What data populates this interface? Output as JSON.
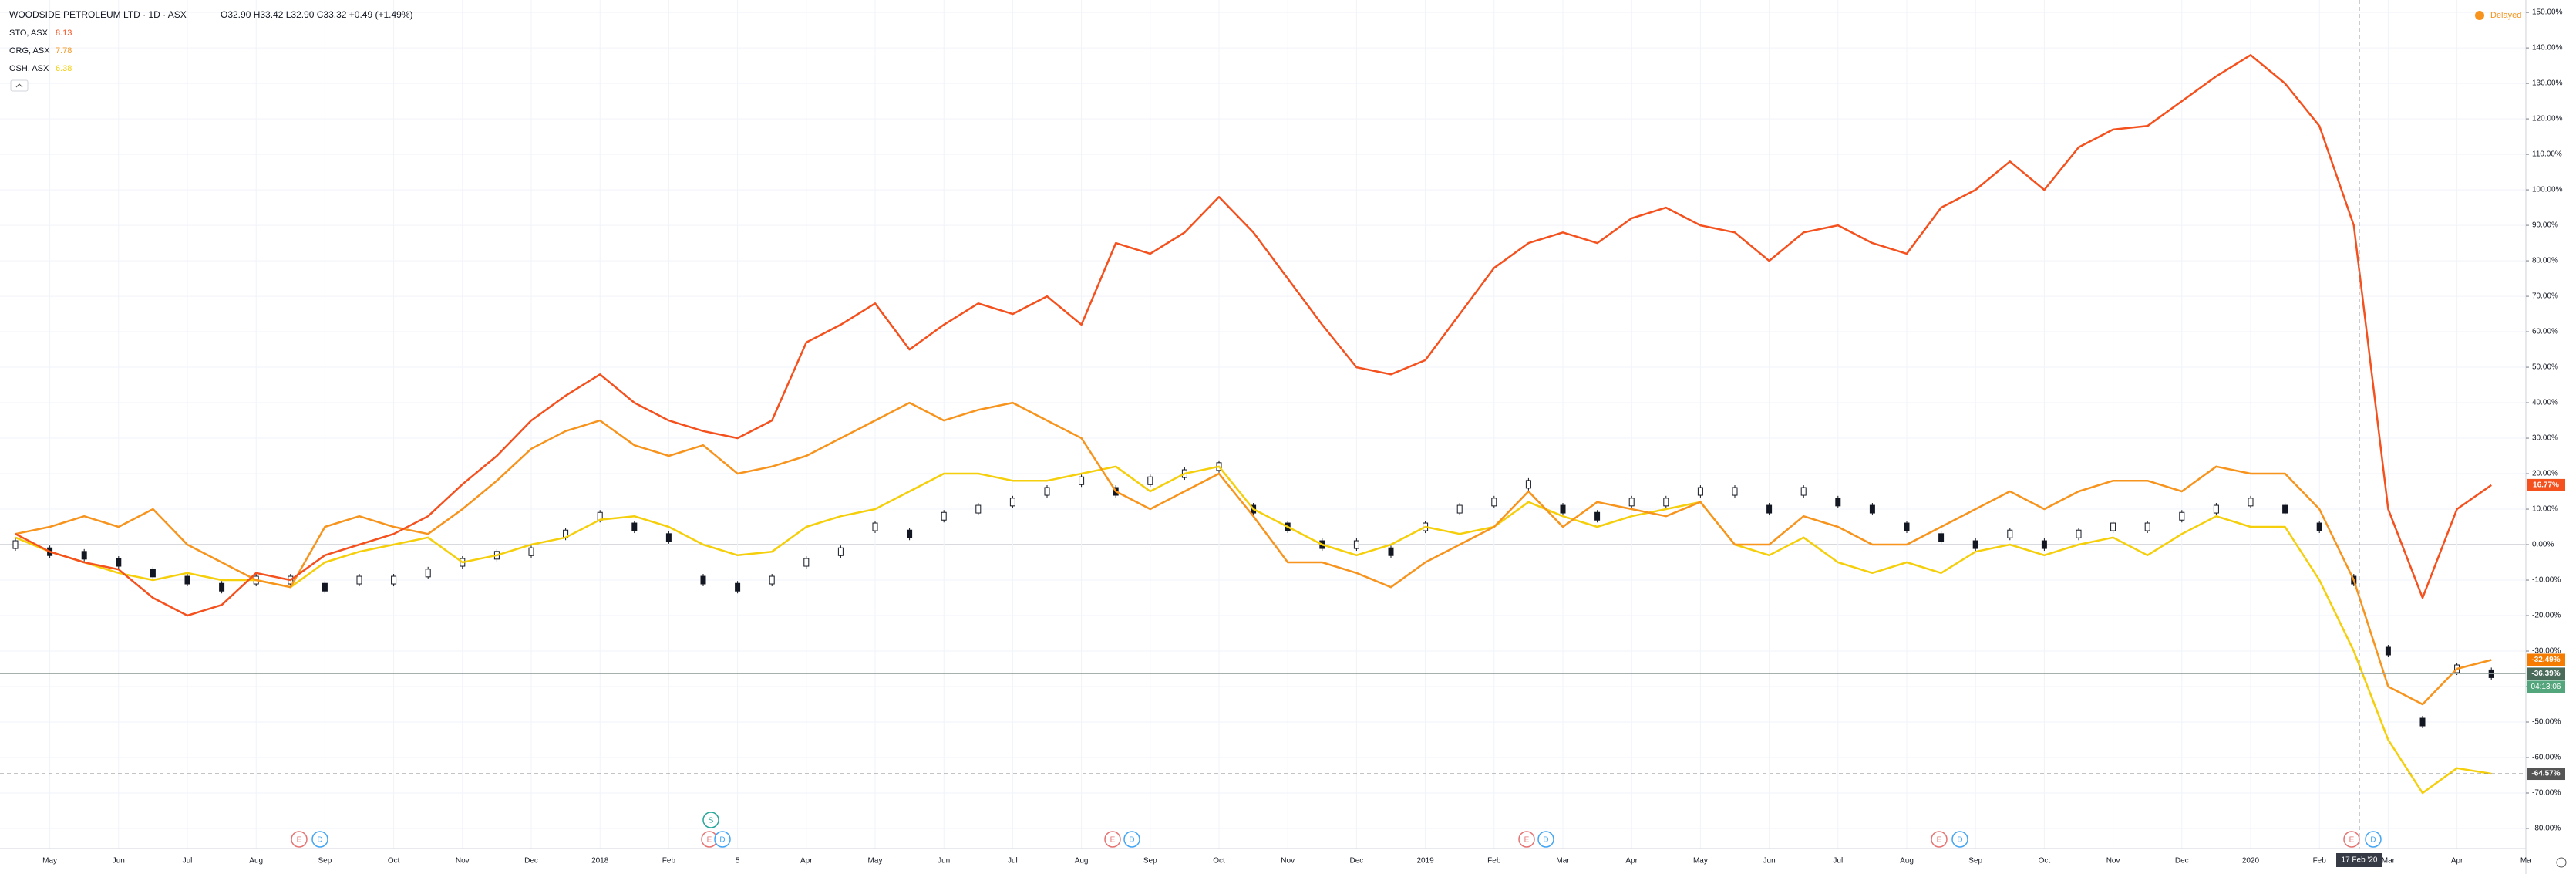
{
  "chart_data": {
    "type": "line",
    "ohlc": "O32.90 H33.42 L32.90 C33.32 +0.49 (+1.49%)",
    "delayed": "Delayed",
    "crosshair_date": "17 Feb '20",
    "countdown": "04:13:06",
    "events": [
      "E",
      "D",
      "S",
      "E",
      "D",
      "E",
      "D",
      "E",
      "D",
      "E",
      "D",
      "E",
      "D"
    ],
    "categories": [
      null,
      "May",
      null,
      "Jun",
      null,
      "Jul",
      null,
      "Aug",
      null,
      "Sep",
      null,
      "Oct",
      null,
      "Nov",
      null,
      "Dec",
      null,
      "2018",
      null,
      "Feb",
      null,
      "5",
      null,
      "Apr",
      null,
      "May",
      null,
      "Jun",
      null,
      "Jul",
      null,
      "Aug",
      null,
      "Sep",
      null,
      "Oct",
      null,
      "Nov",
      null,
      "Dec",
      null,
      "2019",
      null,
      "Feb",
      null,
      "Mar",
      null,
      "Apr",
      null,
      "May",
      null,
      "Jun",
      null,
      "Jul",
      null,
      "Aug",
      null,
      "Sep",
      null,
      "Oct",
      null,
      "Nov",
      null,
      "Dec",
      null,
      "2020",
      null,
      "Feb",
      null,
      "Mar",
      null,
      "Apr",
      null,
      "Ma"
    ],
    "series": [
      {
        "name": "WOODSIDE PETROLEUM LTD · 1D · ASX",
        "style": "candle",
        "color": "#131722",
        "tag_color": "#4a6a5a",
        "last_label": "-36.39%",
        "values": [
          0,
          -2,
          -3,
          -5,
          -8,
          -10,
          -12,
          -10,
          -10,
          -12,
          -10,
          -10,
          -8,
          -5,
          -3,
          -2,
          3,
          8,
          5,
          2,
          -10,
          -12,
          -10,
          -5,
          -2,
          5,
          3,
          8,
          10,
          12,
          15,
          18,
          15,
          18,
          20,
          22,
          10,
          5,
          0,
          0,
          -2,
          5,
          10,
          12,
          17,
          10,
          8,
          12,
          12,
          15,
          15,
          10,
          15,
          12,
          10,
          5,
          2,
          0,
          3,
          0,
          3,
          5,
          5,
          8,
          10,
          12,
          10,
          5,
          -10,
          -30,
          -50,
          -35,
          -36.39,
          null
        ]
      },
      {
        "name": "STO, ASX",
        "price": "8.13",
        "color": "#f4511e",
        "tag_color": "#f4511e",
        "last_label": "16.77%",
        "values": [
          3,
          -2,
          -5,
          -7,
          -15,
          -20,
          -17,
          -8,
          -10,
          -3,
          0,
          3,
          8,
          17,
          25,
          35,
          42,
          48,
          40,
          35,
          32,
          30,
          35,
          57,
          62,
          68,
          55,
          62,
          68,
          65,
          70,
          62,
          85,
          82,
          88,
          98,
          88,
          75,
          62,
          50,
          48,
          52,
          65,
          78,
          85,
          88,
          85,
          92,
          95,
          90,
          88,
          80,
          88,
          90,
          85,
          82,
          95,
          100,
          108,
          100,
          112,
          117,
          118,
          125,
          132,
          138,
          130,
          118,
          90,
          10,
          -15,
          10,
          16.77,
          null
        ]
      },
      {
        "name": "ORG, ASX",
        "price": "7.78",
        "color": "#f7941d",
        "tag_color": "#f57c00",
        "last_label": "-32.49%",
        "values": [
          3,
          5,
          8,
          5,
          10,
          0,
          -5,
          -10,
          -12,
          5,
          8,
          5,
          3,
          10,
          18,
          27,
          32,
          35,
          28,
          25,
          28,
          20,
          22,
          25,
          30,
          35,
          40,
          35,
          38,
          40,
          35,
          30,
          15,
          10,
          15,
          20,
          8,
          -5,
          -5,
          -8,
          -12,
          -5,
          0,
          5,
          15,
          5,
          12,
          10,
          8,
          12,
          0,
          0,
          8,
          5,
          0,
          0,
          5,
          10,
          15,
          10,
          15,
          18,
          18,
          15,
          22,
          20,
          20,
          10,
          -10,
          -40,
          -45,
          -35,
          -32.49,
          null
        ]
      },
      {
        "name": "OSH, ASX",
        "price": "6.38",
        "color": "#f5cf0b",
        "tag_color": "#555555",
        "last_label": "-64.57%",
        "values": [
          2,
          -2,
          -5,
          -8,
          -10,
          -8,
          -10,
          -10,
          -12,
          -5,
          -2,
          0,
          2,
          -5,
          -3,
          0,
          2,
          7,
          8,
          5,
          0,
          -3,
          -2,
          5,
          8,
          10,
          15,
          20,
          20,
          18,
          18,
          20,
          22,
          15,
          20,
          22,
          10,
          5,
          0,
          -3,
          0,
          5,
          3,
          5,
          12,
          8,
          5,
          8,
          10,
          12,
          0,
          -3,
          2,
          -5,
          -8,
          -5,
          -8,
          -2,
          0,
          -3,
          0,
          2,
          -3,
          3,
          8,
          5,
          5,
          -10,
          -30,
          -55,
          -70,
          -63,
          -64.57,
          null
        ]
      }
    ],
    "ylim": [
      -85,
      153.5
    ],
    "yticks": [
      {
        "value": 150,
        "label": "150.00%"
      },
      {
        "value": 140,
        "label": "140.00%"
      },
      {
        "value": 130,
        "label": "130.00%"
      },
      {
        "value": 120,
        "label": "120.00%"
      },
      {
        "value": 110,
        "label": "110.00%"
      },
      {
        "value": 100,
        "label": "100.00%"
      },
      {
        "value": 90,
        "label": "90.00%"
      },
      {
        "value": 80,
        "label": "80.00%"
      },
      {
        "value": 70,
        "label": "70.00%"
      },
      {
        "value": 60,
        "label": "60.00%"
      },
      {
        "value": 50,
        "label": "50.00%"
      },
      {
        "value": 40,
        "label": "40.00%"
      },
      {
        "value": 30,
        "label": "30.00%"
      },
      {
        "value": 20,
        "label": "20.00%"
      },
      {
        "value": 10,
        "label": "10.00%"
      },
      {
        "value": 0,
        "label": "0.00%"
      },
      {
        "value": -10,
        "label": "-10.00%"
      },
      {
        "value": -20,
        "label": "-20.00%"
      },
      {
        "value": -30,
        "label": "-30.00%"
      },
      {
        "value": -40,
        "label": "-40.00%"
      },
      {
        "value": -50,
        "label": "-50.00%"
      },
      {
        "value": -60,
        "label": "-60.00%"
      },
      {
        "value": -70,
        "label": "-70.00%"
      },
      {
        "value": -80,
        "label": "-80.00%"
      }
    ],
    "grid": true
  }
}
